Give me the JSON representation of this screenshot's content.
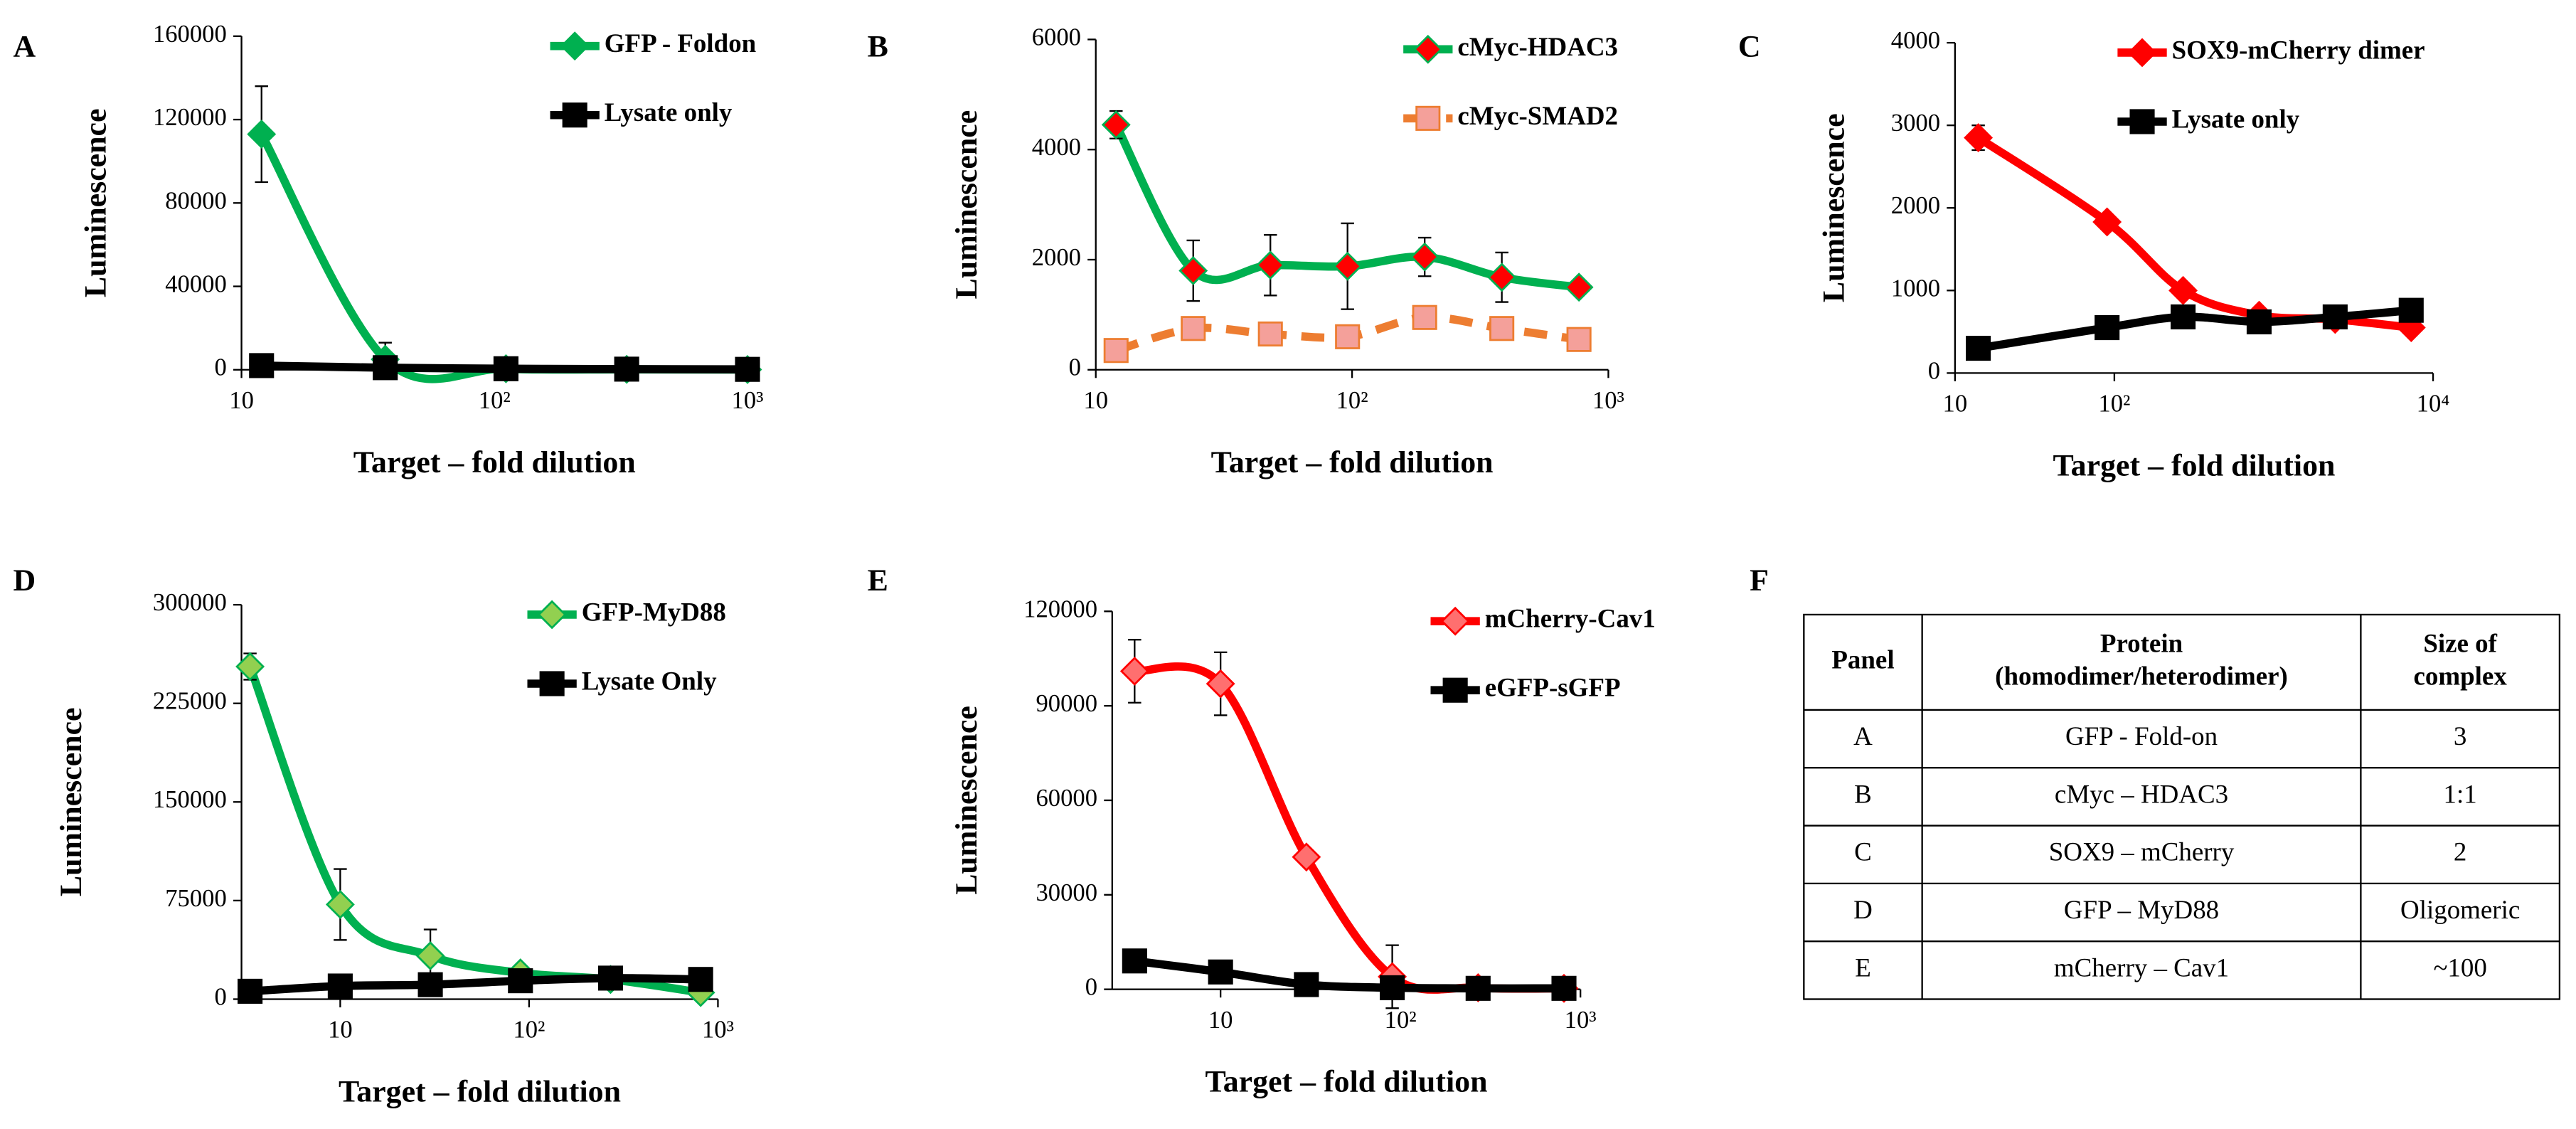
{
  "chart_data": [
    {
      "type": "line",
      "label": "A",
      "ylabel": "Luminescence",
      "xlabel": "Target – fold dilution",
      "xscale": "log",
      "xlim": [
        10,
        1000
      ],
      "xticks": [
        10,
        {
          "value": 100,
          "label": "10²"
        },
        {
          "value": 1000,
          "label": "10³"
        }
      ],
      "ylim": [
        0,
        160000
      ],
      "yticks": [
        0,
        40000,
        80000,
        120000,
        160000
      ],
      "x": [
        12,
        37,
        111,
        333,
        1000
      ],
      "series": [
        {
          "name": "GFP - Foldon",
          "color": "#00b050",
          "marker": "diamond",
          "marker_color": "#00b050",
          "values": [
            113000,
            5000,
            500,
            200,
            100
          ],
          "errors": [
            23000,
            8000,
            0,
            0,
            0
          ]
        },
        {
          "name": "Lysate only",
          "color": "#000000",
          "marker": "square",
          "marker_color": "#000000",
          "values": [
            2000,
            1000,
            500,
            300,
            200
          ],
          "errors": [
            0,
            0,
            0,
            0,
            0
          ]
        }
      ]
    },
    {
      "type": "line",
      "label": "B",
      "ylabel": "Luminescence",
      "xlabel": "Target – fold dilution",
      "xscale": "log",
      "xlim": [
        10,
        1000
      ],
      "xticks": [
        10,
        {
          "value": 100,
          "label": "10²"
        },
        {
          "value": 1000,
          "label": "10³"
        }
      ],
      "ylim": [
        0,
        6000
      ],
      "yticks": [
        0,
        2000,
        4000,
        6000
      ],
      "x": [
        12,
        24,
        48,
        96,
        192,
        384,
        768
      ],
      "series": [
        {
          "name": "cMyc-HDAC3",
          "color": "#00b050",
          "marker": "diamond",
          "marker_color": "#ff0000",
          "values": [
            4450,
            1800,
            1900,
            1880,
            2050,
            1680,
            1500
          ],
          "errors": [
            250,
            550,
            550,
            780,
            350,
            450,
            0
          ]
        },
        {
          "name": "cMyc-SMAD2",
          "color": "#ed7d31",
          "dash": true,
          "marker": "square",
          "marker_color": "#f4a09a",
          "values": [
            350,
            750,
            650,
            600,
            950,
            750,
            550
          ],
          "errors": [
            0,
            0,
            0,
            0,
            0,
            0,
            0
          ]
        }
      ]
    },
    {
      "type": "line",
      "label": "C",
      "ylabel": "Luminescence",
      "xlabel": "Target – fold dilution",
      "xscale": "log",
      "xlim": [
        10,
        10000
      ],
      "xticks": [
        10,
        {
          "value": 100,
          "label": "10²"
        },
        {
          "value": 10000,
          "label": "10⁴"
        }
      ],
      "ylim": [
        0,
        4000
      ],
      "yticks": [
        0,
        1000,
        2000,
        3000,
        4000
      ],
      "x": [
        14,
        90,
        270,
        810,
        2430,
        7290
      ],
      "series": [
        {
          "name": "SOX9-mCherry dimer",
          "color": "#ff0000",
          "marker": "diamond",
          "marker_color": "#ff0000",
          "values": [
            2850,
            1830,
            1000,
            700,
            650,
            550
          ],
          "errors": [
            150,
            0,
            0,
            0,
            0,
            0
          ]
        },
        {
          "name": "Lysate only",
          "color": "#000000",
          "marker": "square",
          "marker_color": "#000000",
          "values": [
            300,
            550,
            680,
            620,
            680,
            760
          ],
          "errors": [
            0,
            0,
            0,
            0,
            0,
            0
          ]
        }
      ]
    },
    {
      "type": "line",
      "label": "D",
      "ylabel": "Luminescence",
      "xlabel": "Target – fold dilution",
      "xscale": "log",
      "xlim": [
        3,
        1000
      ],
      "xticks": [
        10,
        {
          "value": 100,
          "label": "10²"
        },
        {
          "value": 1000,
          "label": "10³"
        }
      ],
      "ylim": [
        0,
        300000
      ],
      "yticks": [
        0,
        75000,
        150000,
        225000,
        300000
      ],
      "x": [
        3.33,
        10,
        30,
        90,
        270,
        810
      ],
      "series": [
        {
          "name": "GFP-MyD88",
          "color": "#00b050",
          "marker": "diamond",
          "marker_color": "#92d050",
          "values": [
            253000,
            72000,
            33000,
            20000,
            15000,
            5000
          ],
          "errors": [
            10000,
            27000,
            20000,
            5000,
            0,
            0
          ]
        },
        {
          "name": "Lysate Only",
          "color": "#000000",
          "marker": "square",
          "marker_color": "#000000",
          "values": [
            6000,
            10000,
            11000,
            14000,
            16000,
            15000
          ],
          "errors": [
            0,
            0,
            0,
            0,
            0,
            0
          ]
        }
      ]
    },
    {
      "type": "line",
      "label": "E",
      "ylabel": "Luminescence",
      "xlabel": "Target – fold dilution",
      "xscale": "log",
      "xlim": [
        2.5,
        1000
      ],
      "xticks": [
        10,
        {
          "value": 100,
          "label": "10²"
        },
        {
          "value": 1000,
          "label": "10³"
        }
      ],
      "ylim": [
        0,
        120000
      ],
      "yticks": [
        0,
        30000,
        60000,
        90000,
        120000
      ],
      "x": [
        3.33,
        10,
        30,
        90,
        270,
        810
      ],
      "series": [
        {
          "name": "mCherry-Cav1",
          "color": "#ff0000",
          "marker": "diamond",
          "marker_color": "#ff6f6f",
          "values": [
            101000,
            97000,
            42000,
            4000,
            500,
            300
          ],
          "errors": [
            10000,
            10000,
            0,
            10000,
            0,
            0
          ]
        },
        {
          "name": "eGFP-sGFP",
          "color": "#000000",
          "marker": "square",
          "marker_color": "#000000",
          "values": [
            9000,
            5500,
            1500,
            500,
            300,
            300
          ],
          "errors": [
            0,
            0,
            0,
            0,
            0,
            0
          ]
        }
      ]
    }
  ],
  "table": {
    "label": "F",
    "header": [
      [
        "Panel"
      ],
      [
        "Protein",
        "(homodimer/heterodimer)"
      ],
      [
        "Size of",
        "complex"
      ]
    ],
    "rows": [
      [
        "A",
        "GFP - Fold-on",
        "3"
      ],
      [
        "B",
        "cMyc – HDAC3",
        "1:1"
      ],
      [
        "C",
        "SOX9 – mCherry",
        "2"
      ],
      [
        "D",
        "GFP – MyD88",
        "Oligomeric"
      ],
      [
        "E",
        "mCherry – Cav1",
        "~100"
      ]
    ]
  }
}
